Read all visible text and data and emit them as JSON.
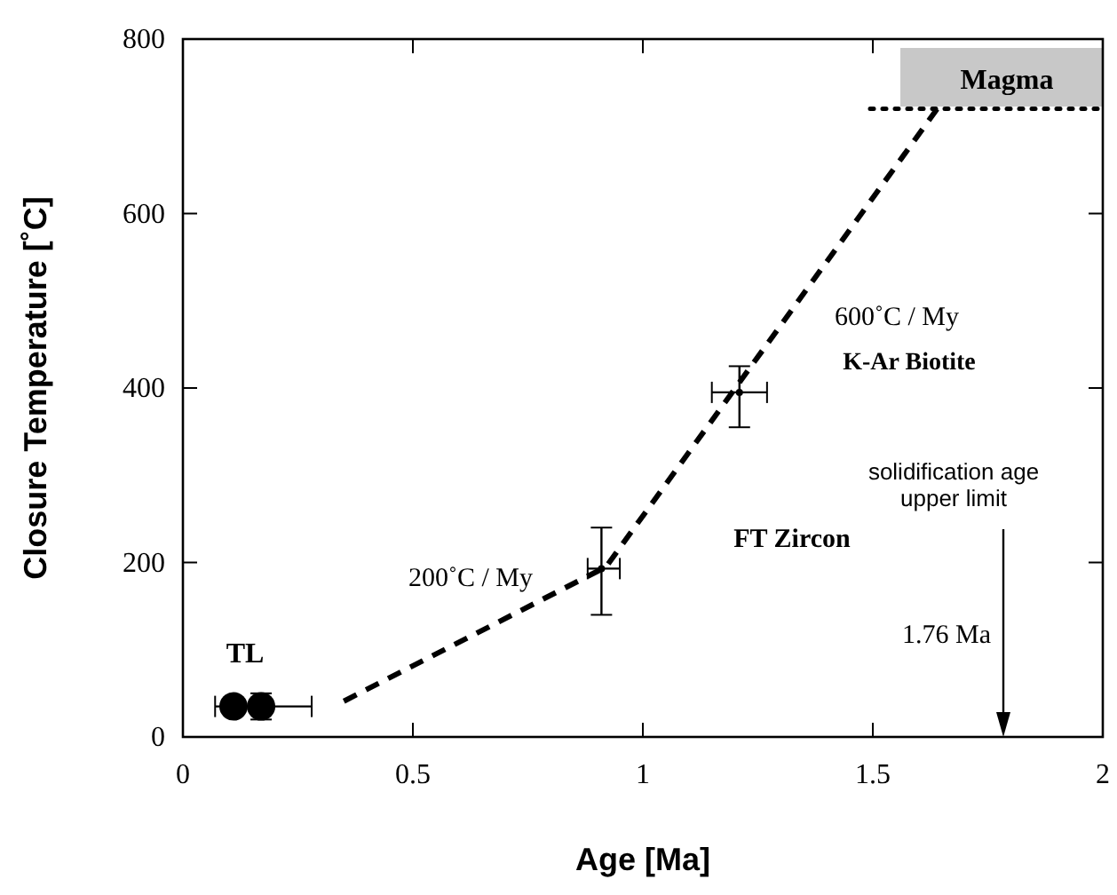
{
  "chart_data": {
    "type": "scatter",
    "xlabel": "Age  [Ma]",
    "ylabel": "Closure Temperature  [˚C]",
    "xlim": [
      0,
      2
    ],
    "ylim": [
      0,
      800
    ],
    "xticks": [
      0,
      0.5,
      1,
      1.5,
      2
    ],
    "yticks": [
      0,
      200,
      400,
      600,
      800
    ],
    "series": [
      {
        "color": "#000000",
        "marker": "circle",
        "x": [
          0.11,
          0.17
        ],
        "values": [
          35,
          35
        ],
        "xerrors": [
          null,
          [
            0.07,
            0.28
          ]
        ],
        "errors": [
          null,
          [
            20,
            50
          ]
        ]
      },
      {
        "color": "#000000",
        "marker": "circle",
        "x": [
          0.91
        ],
        "values": [
          193
        ],
        "xerrors": [
          [
            0.88,
            0.95
          ]
        ],
        "errors": [
          [
            140,
            240
          ]
        ]
      },
      {
        "color": "#000000",
        "marker": "circle",
        "x": [
          1.21
        ],
        "values": [
          395
        ],
        "xerrors": [
          [
            1.15,
            1.27
          ]
        ],
        "errors": [
          [
            355,
            425
          ]
        ]
      },
      {
        "type": "line",
        "color": "#000000",
        "line_style": "dashed",
        "x": [
          0.35,
          0.92,
          1.64
        ],
        "values": [
          41,
          195,
          720
        ]
      }
    ],
    "ref_lines": [
      {
        "axis": "y",
        "value": 720,
        "line_style": "dotted"
      }
    ],
    "annotations": [
      "Magma",
      "TL",
      "200˚C  / My",
      "600˚C / My",
      "K-Ar Biotite",
      "FT Zircon",
      "solidification age",
      "upper limit",
      "1.76 Ma"
    ]
  }
}
